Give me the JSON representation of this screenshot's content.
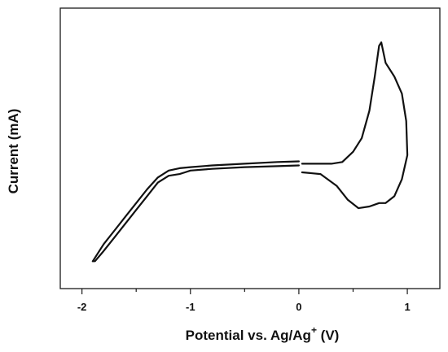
{
  "chart_data": {
    "type": "line",
    "title": "",
    "xlabel": {
      "prefix": "Potential vs. Ag/Ag",
      "superscript": "+",
      "suffix": " (V)"
    },
    "ylabel": "Current (mA)",
    "xlim": [
      -2.2,
      1.3
    ],
    "ylim": [
      -3.4,
      4.8
    ],
    "x_ticks": [
      -2,
      -1,
      0,
      1
    ],
    "x_tick_labels": [
      "-2",
      "-1",
      "0",
      "1"
    ],
    "x_minor_ticks": [
      -1.5,
      -0.5,
      0.5
    ],
    "y_tick_labels_shown": false,
    "grid": false,
    "legend": "none",
    "series": [
      {
        "segments": [
          {
            "x": [
              0.0,
              -0.2,
              -0.5,
              -0.8,
              -1.0,
              -1.05,
              -1.1,
              -1.2,
              -1.3,
              -1.4,
              -1.5,
              -1.6,
              -1.7,
              -1.8,
              -1.88,
              -1.9
            ],
            "y": [
              0.2,
              0.18,
              0.15,
              0.1,
              0.05,
              0.0,
              -0.05,
              -0.1,
              -0.3,
              -0.7,
              -1.1,
              -1.5,
              -1.9,
              -2.3,
              -2.6,
              -2.6
            ]
          },
          {
            "x": [
              -1.9,
              -1.8,
              -1.7,
              -1.6,
              -1.5,
              -1.4,
              -1.3,
              -1.2,
              -1.1,
              -1.0,
              -0.8,
              -0.5,
              -0.2,
              0.0
            ],
            "y": [
              -2.6,
              -2.1,
              -1.7,
              -1.3,
              -0.9,
              -0.5,
              -0.15,
              0.05,
              0.12,
              0.15,
              0.2,
              0.25,
              0.3,
              0.32
            ]
          },
          {
            "x": [
              0.03,
              0.3,
              0.4,
              0.5,
              0.58,
              0.65,
              0.7,
              0.74,
              0.76,
              0.8,
              0.88,
              0.95,
              0.99,
              1.0,
              0.95,
              0.88,
              0.8,
              0.74,
              0.65,
              0.55,
              0.45,
              0.35,
              0.2,
              0.03
            ],
            "y": [
              0.25,
              0.25,
              0.3,
              0.6,
              1.0,
              1.8,
              2.8,
              3.7,
              3.8,
              3.2,
              2.8,
              2.3,
              1.5,
              0.5,
              -0.2,
              -0.7,
              -0.9,
              -0.9,
              -1.0,
              -1.05,
              -0.8,
              -0.4,
              -0.05,
              0.0
            ]
          }
        ]
      }
    ]
  }
}
